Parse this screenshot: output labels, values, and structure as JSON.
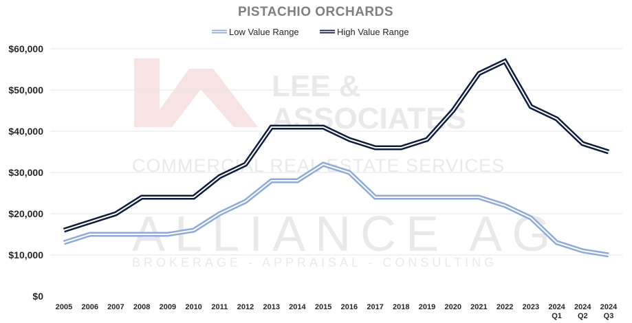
{
  "chart_data": {
    "type": "line",
    "title": "PISTACHIO ORCHARDS",
    "xlabel": "",
    "ylabel": "",
    "ylim": [
      0,
      60000
    ],
    "yticks": [
      "$0",
      "$10,000",
      "$20,000",
      "$30,000",
      "$40,000",
      "$50,000",
      "$60,000"
    ],
    "grid": true,
    "legend_position": "top-center",
    "categories": [
      {
        "line1": "2005",
        "line2": ""
      },
      {
        "line1": "2006",
        "line2": ""
      },
      {
        "line1": "2007",
        "line2": ""
      },
      {
        "line1": "2008",
        "line2": ""
      },
      {
        "line1": "2009",
        "line2": ""
      },
      {
        "line1": "2010",
        "line2": ""
      },
      {
        "line1": "2011",
        "line2": ""
      },
      {
        "line1": "2012",
        "line2": ""
      },
      {
        "line1": "2013",
        "line2": ""
      },
      {
        "line1": "2014",
        "line2": ""
      },
      {
        "line1": "2015",
        "line2": ""
      },
      {
        "line1": "2016",
        "line2": ""
      },
      {
        "line1": "2017",
        "line2": ""
      },
      {
        "line1": "2018",
        "line2": ""
      },
      {
        "line1": "2019",
        "line2": ""
      },
      {
        "line1": "2020",
        "line2": ""
      },
      {
        "line1": "2021",
        "line2": ""
      },
      {
        "line1": "2022",
        "line2": ""
      },
      {
        "line1": "2023",
        "line2": ""
      },
      {
        "line1": "2024",
        "line2": "Q1"
      },
      {
        "line1": "2024",
        "line2": "Q2"
      },
      {
        "line1": "2024",
        "line2": "Q3"
      }
    ],
    "series": [
      {
        "name": "Low Value Range",
        "color": "#8ea9db",
        "values": [
          13000,
          15000,
          15000,
          15000,
          15000,
          16000,
          20000,
          23000,
          28000,
          28000,
          32000,
          30000,
          24000,
          24000,
          24000,
          24000,
          24000,
          22000,
          19000,
          13000,
          11000,
          10000
        ]
      },
      {
        "name": "High Value Range",
        "color": "#0e1d3e",
        "values": [
          16000,
          18000,
          20000,
          24000,
          24000,
          24000,
          29000,
          32000,
          41000,
          41000,
          41000,
          38000,
          36000,
          36000,
          38000,
          45000,
          54000,
          57000,
          46000,
          43000,
          37000,
          35000
        ]
      }
    ]
  },
  "watermark": {
    "line1": "LEE &",
    "line2": "ASSOCIATES",
    "line3": "COMMERCIAL REAL ESTATE SERVICES",
    "line4": "ALLIANCE AG",
    "line5": "BROKERAGE - APPRAISAL - CONSULTING",
    "logo_color": "#f6dede"
  }
}
